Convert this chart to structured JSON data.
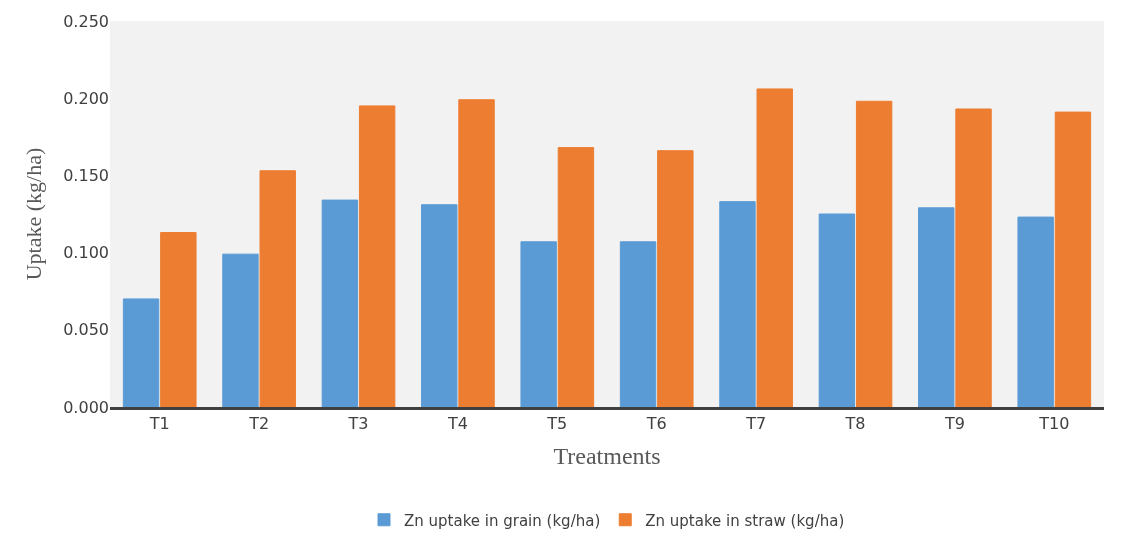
{
  "chart_data": {
    "type": "bar",
    "xlabel": "Treatments",
    "ylabel": "Uptake (kg/ha)",
    "categories": [
      "T1",
      "T2",
      "T3",
      "T4",
      "T5",
      "T6",
      "T7",
      "T8",
      "T9",
      "T10"
    ],
    "series": [
      {
        "name": "Zn uptake in grain (kg/ha)",
        "color": "#5b9bd5",
        "values": [
          0.07,
          0.099,
          0.134,
          0.131,
          0.107,
          0.107,
          0.133,
          0.125,
          0.129,
          0.123
        ]
      },
      {
        "name": "Zn uptake in straw (kg/ha)",
        "color": "#ed7d31",
        "values": [
          0.113,
          0.153,
          0.195,
          0.199,
          0.168,
          0.166,
          0.206,
          0.198,
          0.193,
          0.191
        ]
      }
    ],
    "ylim": [
      0,
      0.25
    ],
    "yticks": [
      {
        "value": 0,
        "label": "0.000"
      },
      {
        "value": 0.05,
        "label": "0.050"
      },
      {
        "value": 0.1,
        "label": "0.100"
      },
      {
        "value": 0.15,
        "label": "0.150"
      },
      {
        "value": 0.2,
        "label": "0.200"
      },
      {
        "value": 0.25,
        "label": "0.250"
      }
    ],
    "grid": false,
    "legend": "bottom"
  }
}
